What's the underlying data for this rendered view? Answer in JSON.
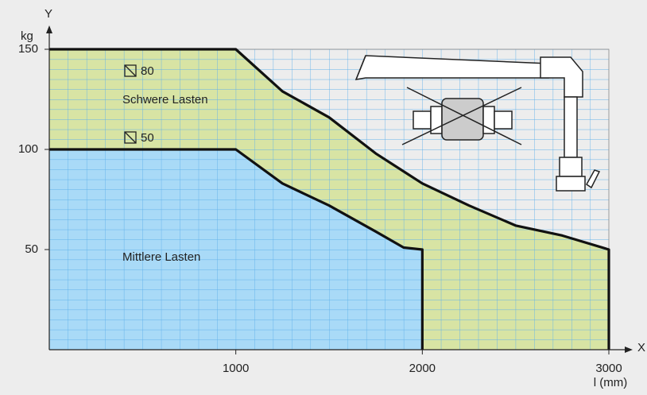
{
  "chart_data": {
    "type": "area",
    "y_label": "kg",
    "y_axis_name": "Y",
    "x_axis_name": "X",
    "x_label": "l (mm)",
    "xlim": [
      0,
      3000
    ],
    "ylim": [
      0,
      150
    ],
    "xticks": [
      1000,
      2000,
      3000
    ],
    "yticks": [
      50,
      100,
      150
    ],
    "series": [
      {
        "name": "Schwere Lasten",
        "profile": "80",
        "color": "#d8e4a4",
        "x": [
          0,
          1000,
          1250,
          1500,
          1750,
          2000,
          2250,
          2500,
          2750,
          3000,
          3000
        ],
        "values": [
          150,
          150,
          129,
          116,
          98,
          83,
          72,
          62,
          57,
          50,
          0
        ]
      },
      {
        "name": "Mittlere Lasten",
        "profile": "50",
        "color": "#a9daf7",
        "x": [
          0,
          1000,
          1250,
          1500,
          1750,
          1900,
          2000,
          2000
        ],
        "values": [
          100,
          100,
          83,
          72,
          59,
          51,
          50,
          0
        ]
      }
    ]
  }
}
